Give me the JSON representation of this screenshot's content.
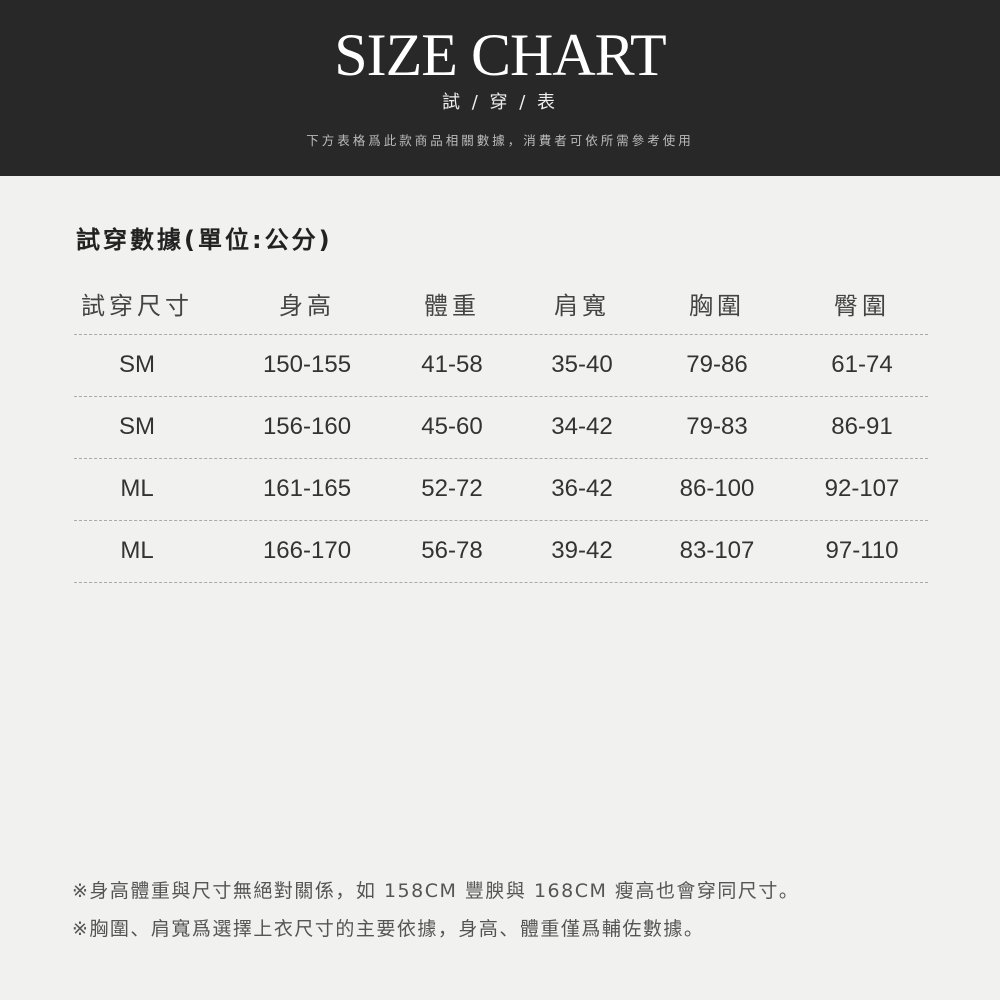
{
  "header": {
    "title": "SIZE CHART",
    "subtitle": "試 / 穿 / 表",
    "description": "下方表格爲此款商品相關數據，消費者可依所需參考使用"
  },
  "section_title": "試穿數據(單位:公分)",
  "table": {
    "columns": [
      "試穿尺寸",
      "身高",
      "體重",
      "肩寬",
      "胸圍",
      "臀圍"
    ],
    "rows": [
      [
        "SM",
        "150-155",
        "41-58",
        "35-40",
        "79-86",
        "61-74"
      ],
      [
        "SM",
        "156-160",
        "45-60",
        "34-42",
        "79-83",
        "86-91"
      ],
      [
        "ML",
        "161-165",
        "52-72",
        "36-42",
        "86-100",
        "92-107"
      ],
      [
        "ML",
        "166-170",
        "56-78",
        "39-42",
        "83-107",
        "97-110"
      ]
    ]
  },
  "notes": [
    "※身高體重與尺寸無絕對關係，如 158CM 豐腴與 168CM 瘦高也會穿同尺寸。",
    "※胸圍、肩寬爲選擇上衣尺寸的主要依據，身高、體重僅爲輔佐數據。"
  ]
}
